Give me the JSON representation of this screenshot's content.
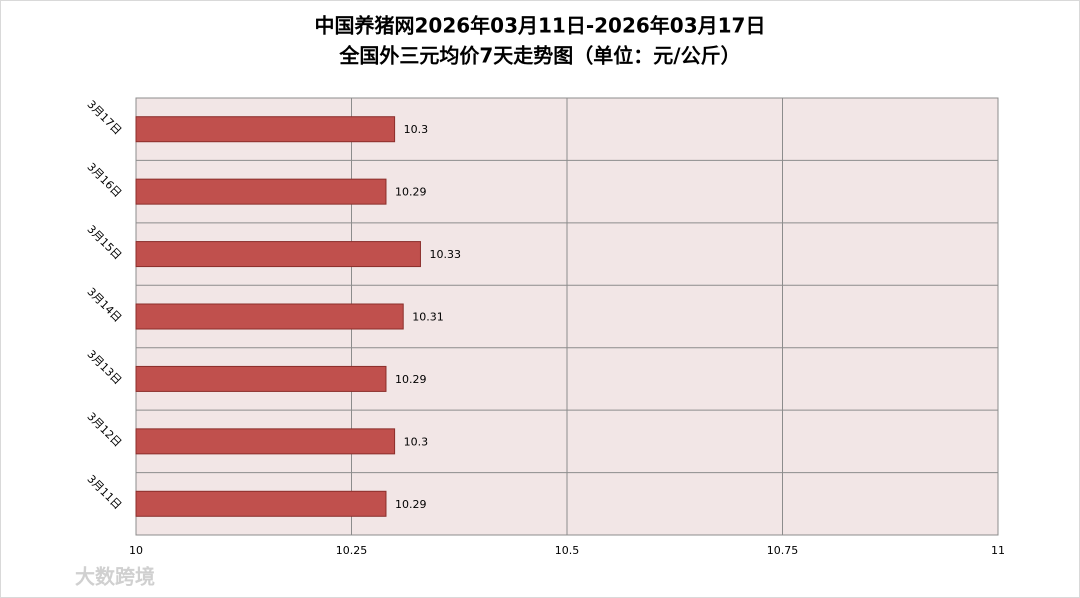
{
  "chart_data": {
    "type": "bar",
    "orientation": "horizontal",
    "title": "中国养猪网2026年03月11日-2026年03月17日",
    "subtitle": "全国外三元均价7天走势图（单位：元/公斤）",
    "categories": [
      "3月17日",
      "3月16日",
      "3月15日",
      "3月14日",
      "3月13日",
      "3月12日",
      "3月11日"
    ],
    "values": [
      10.3,
      10.29,
      10.33,
      10.31,
      10.29,
      10.3,
      10.29
    ],
    "color": "#c0504d",
    "xlim": [
      10,
      11
    ],
    "xticks": [
      10,
      10.25,
      10.5,
      10.75,
      11
    ],
    "grid": true
  },
  "watermark": "大数跨境"
}
